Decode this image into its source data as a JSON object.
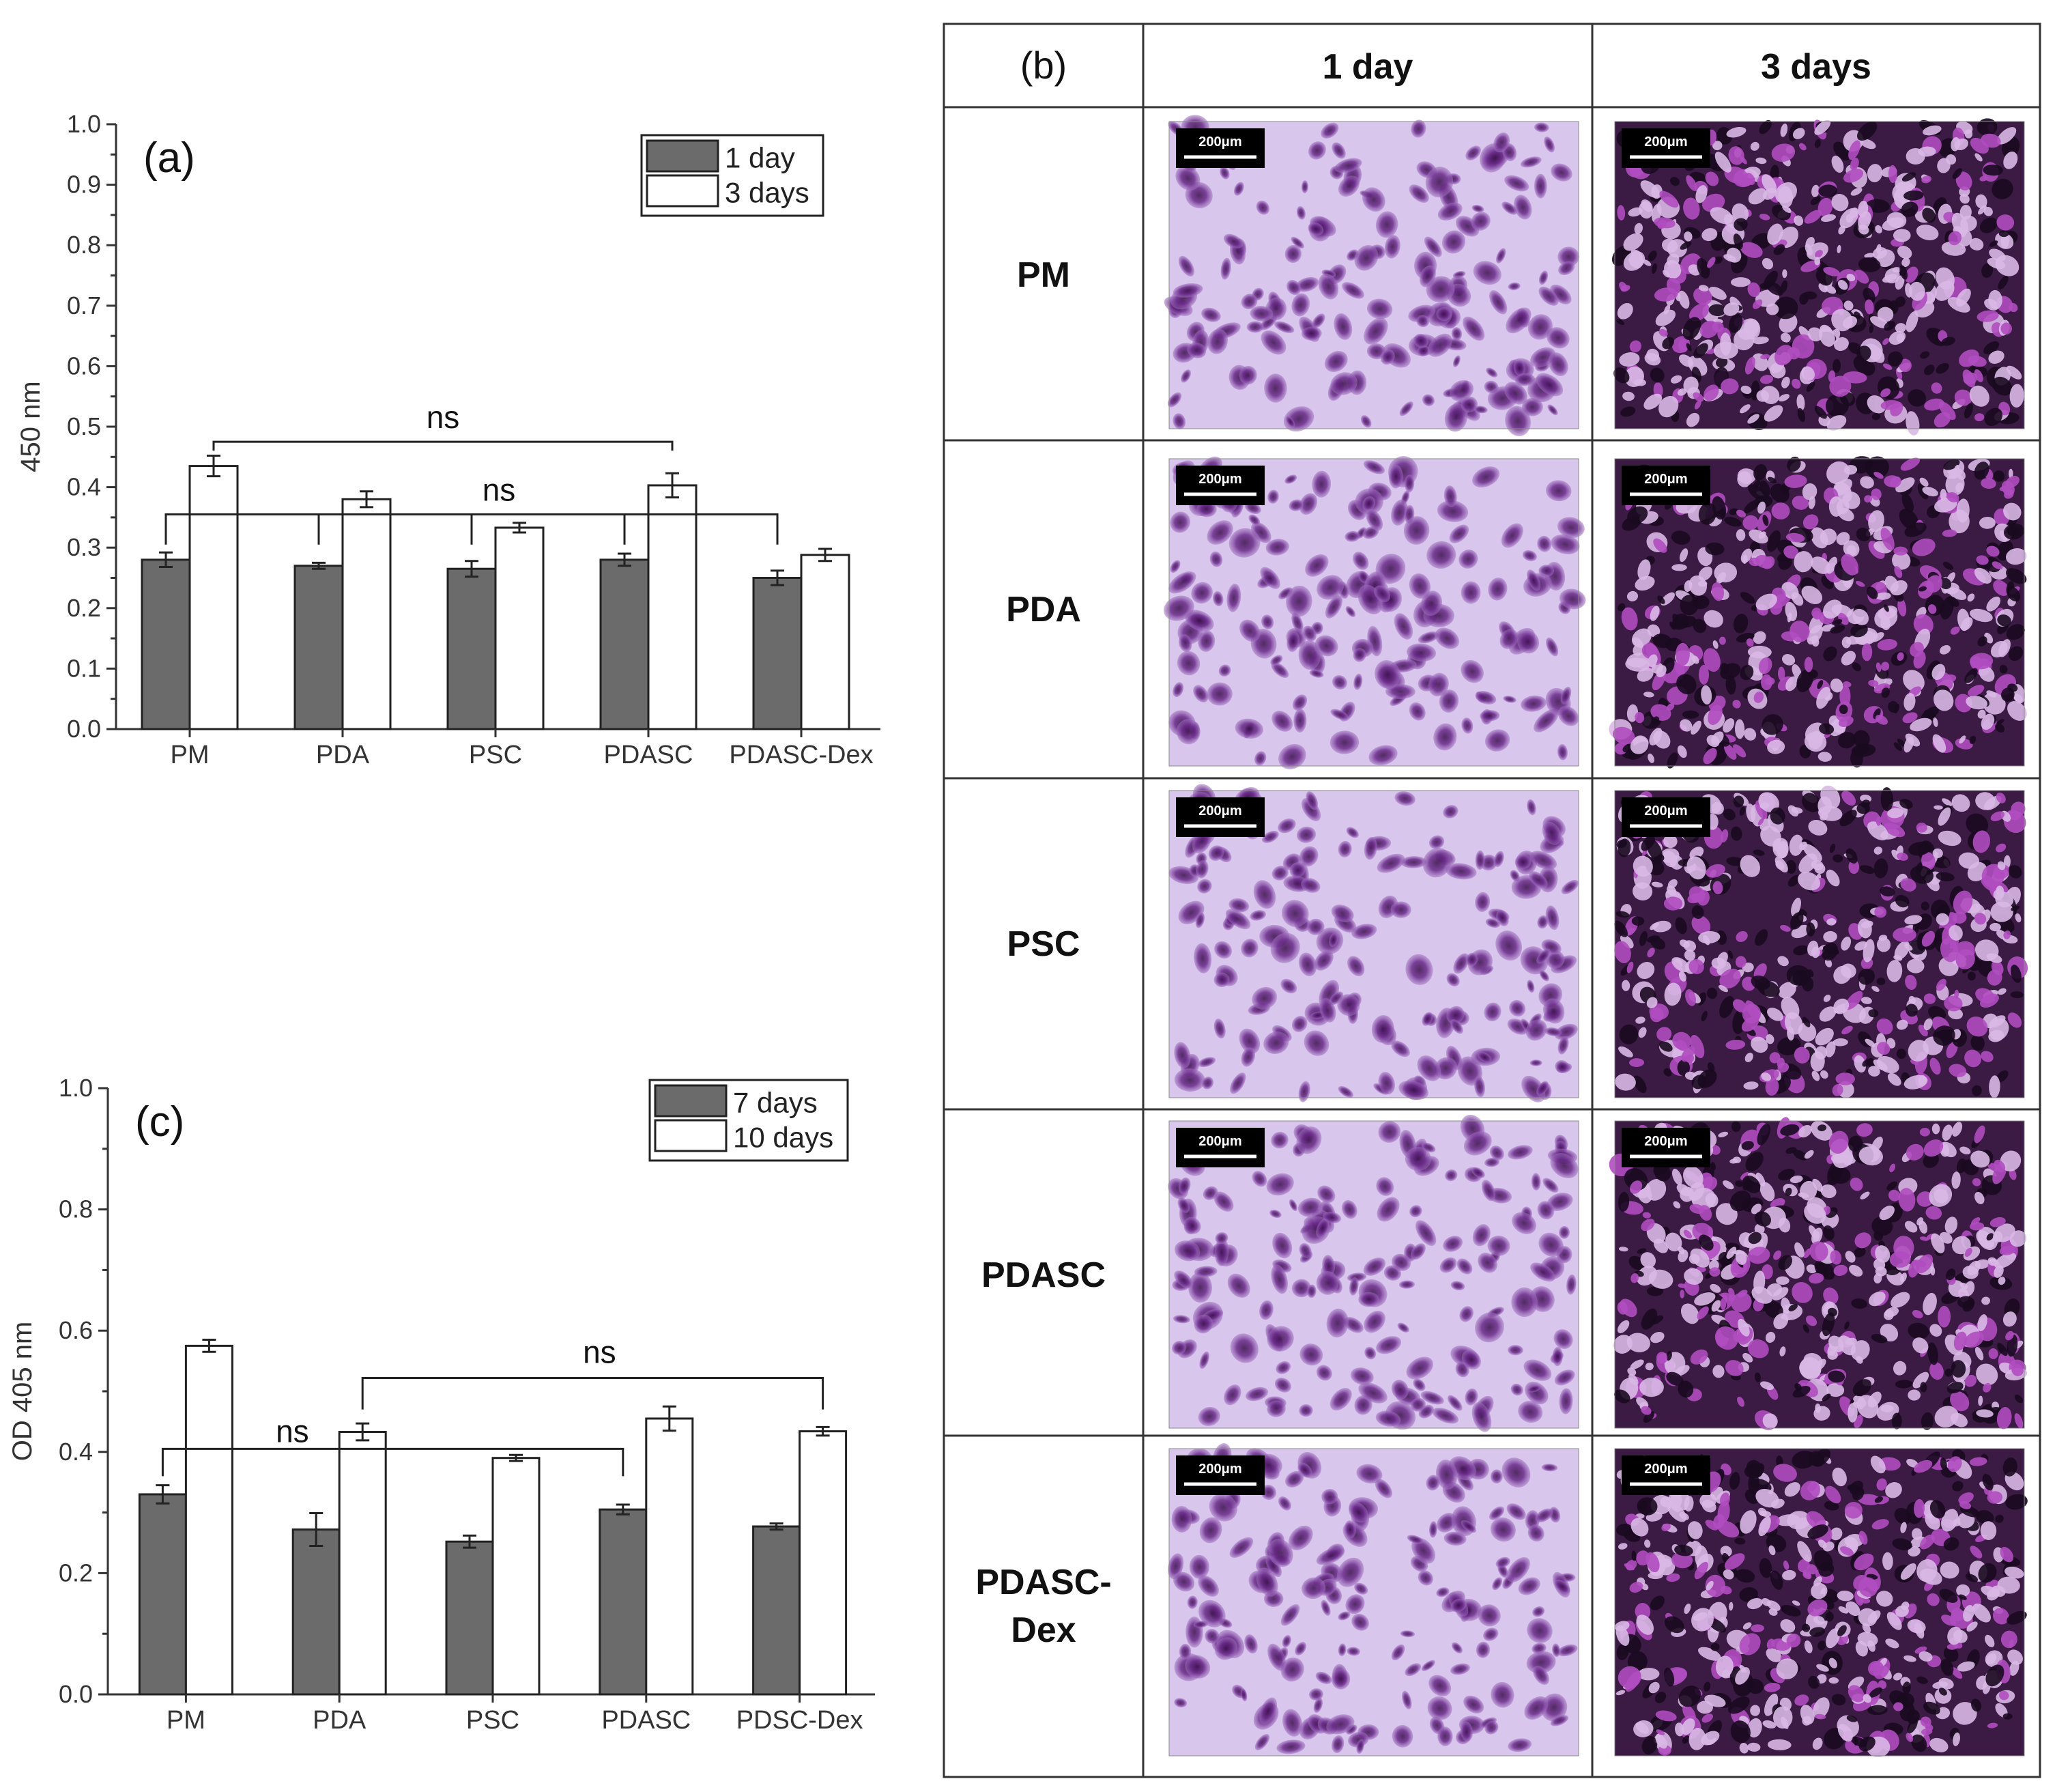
{
  "chart_data": [
    {
      "panel": "(a)",
      "type": "bar",
      "categories": [
        "PM",
        "PDA",
        "PSC",
        "PDASC",
        "PDASC-Dex"
      ],
      "series": [
        {
          "name": "1 day",
          "values": [
            0.28,
            0.27,
            0.265,
            0.28,
            0.25
          ],
          "errors": [
            0.012,
            0.005,
            0.013,
            0.01,
            0.012
          ]
        },
        {
          "name": "3 days",
          "values": [
            0.435,
            0.38,
            0.333,
            0.403,
            0.288
          ],
          "errors": [
            0.017,
            0.013,
            0.008,
            0.02,
            0.01
          ]
        }
      ],
      "ylabel": "450 nm",
      "ylim": [
        0,
        1.0
      ],
      "ticks": [
        "0.0",
        "0.1",
        "0.2",
        "0.3",
        "0.4",
        "0.5",
        "0.6",
        "0.7",
        "0.8",
        "0.9",
        "1.0"
      ],
      "legend_position": "top-right",
      "annotations": [
        {
          "label": "ns",
          "from": "PM 3 days",
          "to": "PDASC 3 days"
        },
        {
          "label": "ns",
          "from": "PM 1 day",
          "to": "PDASC-Dex 1 day"
        }
      ]
    },
    {
      "panel": "(c)",
      "type": "bar",
      "categories": [
        "PM",
        "PDA",
        "PSC",
        "PDASC",
        "PDSC-Dex"
      ],
      "series": [
        {
          "name": "7 days",
          "values": [
            0.33,
            0.272,
            0.252,
            0.305,
            0.277
          ],
          "errors": [
            0.015,
            0.027,
            0.01,
            0.008,
            0.005
          ]
        },
        {
          "name": "10 days",
          "values": [
            0.575,
            0.433,
            0.39,
            0.455,
            0.434
          ],
          "errors": [
            0.01,
            0.014,
            0.005,
            0.02,
            0.007
          ]
        }
      ],
      "ylabel": "OD 405 nm",
      "ylim": [
        0,
        1.0
      ],
      "ticks": [
        "0.0",
        "0.2",
        "0.4",
        "0.6",
        "0.8",
        "1.0"
      ],
      "legend_position": "top-right",
      "annotations": [
        {
          "label": "ns",
          "from": "PDA 10 days",
          "to": "PDSC-Dex 10 days"
        },
        {
          "label": "ns",
          "from": "PM 7 days",
          "to": "PDASC 7 days"
        }
      ]
    }
  ],
  "table": {
    "panel": "(b)",
    "columns": [
      "1 day",
      "3 days"
    ],
    "rows": [
      "PM",
      "PDA",
      "PSC",
      "PDASC",
      "PDASC-\nDex"
    ],
    "rows_line1": [
      "PM",
      "PDA",
      "PSC",
      "PDASC",
      "PDASC-"
    ],
    "rows_line2": [
      "",
      "",
      "",
      "",
      "Dex"
    ],
    "scale_label": "200μm"
  },
  "colors": {
    "dark_bar": "#6b6b6b",
    "light_bar": "#ffffff",
    "stain_light": "#d9c6ec",
    "stain_dark": "#5a1e6e"
  }
}
